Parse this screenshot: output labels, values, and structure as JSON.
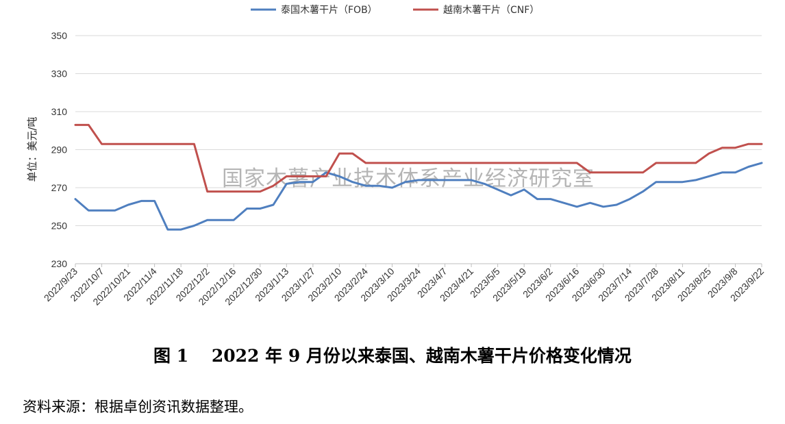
{
  "chart_data": {
    "type": "line",
    "ylabel": "单位：美元/吨",
    "ylim": [
      230,
      350
    ],
    "yticks": [
      230,
      250,
      270,
      290,
      310,
      330,
      350
    ],
    "grid": "horizontal",
    "legend_position": "top-center",
    "watermark": "国家木薯产业技术体系产业经济研究室",
    "x_tick_labels": [
      "2022/9/23",
      "2022/10/7",
      "2022/10/21",
      "2022/11/4",
      "2022/11/18",
      "2022/12/2",
      "2022/12/16",
      "2022/12/30",
      "2023/1/13",
      "2023/1/27",
      "2023/2/10",
      "2023/2/24",
      "2023/3/10",
      "2023/3/24",
      "2023/4/7",
      "2023/4/21",
      "2023/5/5",
      "2023/5/19",
      "2023/6/2",
      "2023/6/16",
      "2023/6/30",
      "2023/7/14",
      "2023/7/28",
      "2023/8/11",
      "2023/8/25",
      "2023/9/8",
      "2023/9/22"
    ],
    "x": [
      "2022/9/23",
      "2022/9/30",
      "2022/10/7",
      "2022/10/14",
      "2022/10/21",
      "2022/10/28",
      "2022/11/4",
      "2022/11/11",
      "2022/11/18",
      "2022/11/25",
      "2022/12/2",
      "2022/12/9",
      "2022/12/16",
      "2022/12/23",
      "2022/12/30",
      "2023/1/6",
      "2023/1/13",
      "2023/1/20",
      "2023/1/27",
      "2023/2/3",
      "2023/2/10",
      "2023/2/17",
      "2023/2/24",
      "2023/3/3",
      "2023/3/10",
      "2023/3/17",
      "2023/3/24",
      "2023/3/31",
      "2023/4/7",
      "2023/4/14",
      "2023/4/21",
      "2023/4/28",
      "2023/5/5",
      "2023/5/12",
      "2023/5/19",
      "2023/5/26",
      "2023/6/2",
      "2023/6/9",
      "2023/6/16",
      "2023/6/23",
      "2023/6/30",
      "2023/7/7",
      "2023/7/14",
      "2023/7/21",
      "2023/7/28",
      "2023/8/4",
      "2023/8/11",
      "2023/8/18",
      "2023/8/25",
      "2023/9/1",
      "2023/9/8",
      "2023/9/15",
      "2023/9/22"
    ],
    "series": [
      {
        "name": "泰国木薯干片（FOB）",
        "color": "#4f7fbf",
        "values": [
          264,
          258,
          258,
          258,
          261,
          263,
          263,
          248,
          248,
          250,
          253,
          253,
          253,
          259,
          259,
          261,
          272,
          273,
          273,
          278,
          276,
          273,
          271,
          271,
          270,
          273,
          274,
          274,
          274,
          274,
          274,
          272,
          269,
          266,
          269,
          264,
          264,
          262,
          260,
          262,
          260,
          261,
          264,
          268,
          273,
          273,
          273,
          274,
          276,
          278,
          278,
          281,
          283
        ]
      },
      {
        "name": "越南木薯干片（CNF）",
        "color": "#c0504d",
        "values": [
          303,
          303,
          293,
          293,
          293,
          293,
          293,
          293,
          293,
          293,
          268,
          268,
          268,
          268,
          268,
          271,
          276,
          276,
          276,
          276,
          288,
          288,
          283,
          283,
          283,
          283,
          283,
          283,
          283,
          283,
          283,
          283,
          283,
          283,
          283,
          283,
          283,
          283,
          283,
          278,
          278,
          278,
          278,
          278,
          283,
          283,
          283,
          283,
          288,
          291,
          291,
          293,
          293
        ]
      }
    ]
  },
  "caption": "图 1　 2022 年 9 月份以来泰国、越南木薯干片价格变化情况",
  "source": "资料来源：根据卓创资讯数据整理。"
}
